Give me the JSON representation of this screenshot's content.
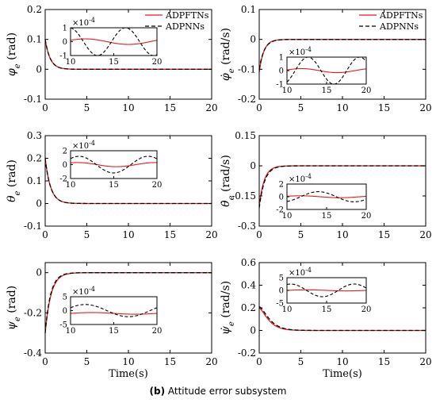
{
  "caption": {
    "letter": "(b)",
    "text": "Attitude error subsystem"
  },
  "legend": [
    "ADPFTNs",
    "ADPNNs"
  ],
  "colors": {
    "adpftns": "#e8191c",
    "adpnns": "#000000"
  },
  "chart_data": [
    {
      "type": "line",
      "id": "phi",
      "ylabel": "φ_e (rad)",
      "xlim": [
        0,
        20
      ],
      "ylim": [
        -0.1,
        0.2
      ],
      "yticks": [
        "0.2",
        "0.1",
        "0",
        "-0.1"
      ],
      "xticks": [
        "0",
        "5",
        "10",
        "15",
        "20"
      ],
      "xlabel": "",
      "legend": true,
      "series": [
        {
          "name": "ADPFTNs",
          "style": "solid",
          "initial": 0.1,
          "tau": 0.6,
          "final": 0
        },
        {
          "name": "ADPNNs",
          "style": "dashed",
          "initial": 0.1,
          "tau": 0.6,
          "final": 0
        }
      ],
      "inset": {
        "exponent": "×10^-4",
        "xlim": [
          10,
          20
        ],
        "ylim": [
          -1,
          1
        ],
        "yticks": [
          "1",
          "0",
          "-1"
        ],
        "xticks": [
          "10",
          "15",
          "20"
        ],
        "series": [
          {
            "name": "ADPFTNs",
            "amp": 0.2,
            "period": 10,
            "phase": 0.5,
            "offset": 0
          },
          {
            "name": "ADPNNs",
            "amp": 1.0,
            "period": 6.5,
            "phase": 1.7,
            "offset": 0
          }
        ]
      }
    },
    {
      "type": "line",
      "id": "dphi",
      "ylabel": "φ̇_e (rad/s)",
      "xlim": [
        0,
        20
      ],
      "ylim": [
        -0.2,
        0.1
      ],
      "yticks": [
        "0.1",
        "0",
        "-0.1",
        "-0.2"
      ],
      "xticks": [
        "0",
        "5",
        "10",
        "15",
        "20"
      ],
      "xlabel": "",
      "legend": true,
      "series": [
        {
          "name": "ADPFTNs",
          "style": "solid",
          "initial": -0.11,
          "tau": 0.55,
          "final": 0
        },
        {
          "name": "ADPNNs",
          "style": "dashed",
          "initial": -0.1,
          "tau": 0.6,
          "final": 0
        }
      ],
      "inset": {
        "exponent": "×10^-4",
        "xlim": [
          10,
          20
        ],
        "ylim": [
          -1,
          1
        ],
        "yticks": [
          "1",
          "0",
          "-1"
        ],
        "xticks": [
          "10",
          "15",
          "20"
        ],
        "series": [
          {
            "name": "ADPFTNs",
            "amp": 0.15,
            "period": 9,
            "phase": 0.3,
            "offset": 0
          },
          {
            "name": "ADPNNs",
            "amp": 1.0,
            "period": 6.5,
            "phase": -1.0,
            "offset": 0
          }
        ]
      }
    },
    {
      "type": "line",
      "id": "theta",
      "ylabel": "θ_e (rad)",
      "xlim": [
        0,
        20
      ],
      "ylim": [
        -0.1,
        0.3
      ],
      "yticks": [
        "0.3",
        "0.2",
        "0.1",
        "0",
        "-0.1"
      ],
      "xticks": [
        "0",
        "5",
        "10",
        "15",
        "20"
      ],
      "xlabel": "",
      "legend": false,
      "series": [
        {
          "name": "ADPFTNs",
          "style": "solid",
          "initial": 0.2,
          "tau": 0.65,
          "final": 0
        },
        {
          "name": "ADPNNs",
          "style": "dashed",
          "initial": 0.2,
          "tau": 0.65,
          "final": 0
        }
      ],
      "inset": {
        "exponent": "×10^-4",
        "xlim": [
          10,
          20
        ],
        "ylim": [
          -2,
          2
        ],
        "yticks": [
          "2",
          "0",
          "-2"
        ],
        "xticks": [
          "10",
          "15",
          "20"
        ],
        "series": [
          {
            "name": "ADPFTNs",
            "amp": 0.3,
            "period": 9,
            "phase": 1.0,
            "offset": 0
          },
          {
            "name": "ADPNNs",
            "amp": 1.2,
            "period": 8,
            "phase": 0.8,
            "offset": 0
          }
        ]
      }
    },
    {
      "type": "line",
      "id": "dtheta",
      "ylabel": "θ̇_e (rad/s)",
      "xlim": [
        0,
        20
      ],
      "ylim": [
        -0.3,
        0.15
      ],
      "yticks": [
        "0.15",
        "0",
        "-0.15",
        "-0.3"
      ],
      "xticks": [
        "0",
        "5",
        "10",
        "15",
        "20"
      ],
      "xlabel": "",
      "legend": false,
      "series": [
        {
          "name": "ADPFTNs",
          "style": "solid",
          "initial": -0.2,
          "tau": 0.6,
          "final": 0
        },
        {
          "name": "ADPNNs",
          "style": "dashed",
          "initial": -0.21,
          "tau": 0.65,
          "final": 0
        }
      ],
      "inset": {
        "exponent": "×10^-4",
        "xlim": [
          10,
          20
        ],
        "ylim": [
          -2,
          2
        ],
        "yticks": [
          "2",
          "0",
          "-2"
        ],
        "xticks": [
          "10",
          "15",
          "20"
        ],
        "series": [
          {
            "name": "ADPFTNs",
            "amp": 0.15,
            "period": 10,
            "phase": 0.5,
            "offset": 0
          },
          {
            "name": "ADPNNs",
            "amp": 0.8,
            "period": 9,
            "phase": -1.2,
            "offset": 0
          }
        ]
      }
    },
    {
      "type": "line",
      "id": "psi",
      "ylabel": "ψ_e (rad)",
      "xlim": [
        0,
        20
      ],
      "ylim": [
        -0.4,
        0.05
      ],
      "yticks": [
        "0",
        "-0.2",
        "-0.4"
      ],
      "xticks": [
        "0",
        "5",
        "10",
        "15",
        "20"
      ],
      "xlabel": "Time(s)",
      "legend": false,
      "series": [
        {
          "name": "ADPFTNs",
          "style": "solid",
          "initial": -0.3,
          "tau": 0.7,
          "final": 0
        },
        {
          "name": "ADPNNs",
          "style": "dashed",
          "initial": -0.3,
          "tau": 0.65,
          "final": 0
        }
      ],
      "inset": {
        "exponent": "×10^-4",
        "xlim": [
          10,
          20
        ],
        "ylim": [
          -5,
          5
        ],
        "yticks": [
          "5",
          "0",
          "-5"
        ],
        "xticks": [
          "10",
          "15",
          "20"
        ],
        "series": [
          {
            "name": "ADPFTNs",
            "amp": 0.3,
            "period": 10,
            "phase": 0,
            "offset": -1
          },
          {
            "name": "ADPNNs",
            "amp": 2.2,
            "period": 10,
            "phase": 0.5,
            "offset": 0
          }
        ]
      }
    },
    {
      "type": "line",
      "id": "dpsi",
      "ylabel": "ψ̇_e (rad/s)",
      "xlim": [
        0,
        20
      ],
      "ylim": [
        -0.2,
        0.6
      ],
      "yticks": [
        "0.6",
        "0.4",
        "0.2",
        "0",
        "-0.2"
      ],
      "xticks": [
        "0",
        "5",
        "10",
        "15",
        "20"
      ],
      "xlabel": "Time(s)",
      "legend": false,
      "series": [
        {
          "name": "ADPFTNs",
          "style": "solid",
          "initial": 0.2,
          "tau": 0.7,
          "final": 0,
          "bump": true
        },
        {
          "name": "ADPNNs",
          "style": "dashed",
          "initial": 0.21,
          "tau": 0.75,
          "final": 0,
          "bump": true
        }
      ],
      "inset": {
        "exponent": "×10^-4",
        "xlim": [
          10,
          20
        ],
        "ylim": [
          -5,
          5
        ],
        "yticks": [
          "5",
          "0",
          "-5"
        ],
        "xticks": [
          "10",
          "15",
          "20"
        ],
        "series": [
          {
            "name": "ADPFTNs",
            "amp": 0.2,
            "period": 10,
            "phase": 0,
            "offset": 0
          },
          {
            "name": "ADPNNs",
            "amp": 2.5,
            "period": 8,
            "phase": 1.2,
            "offset": 0
          }
        ]
      }
    }
  ]
}
